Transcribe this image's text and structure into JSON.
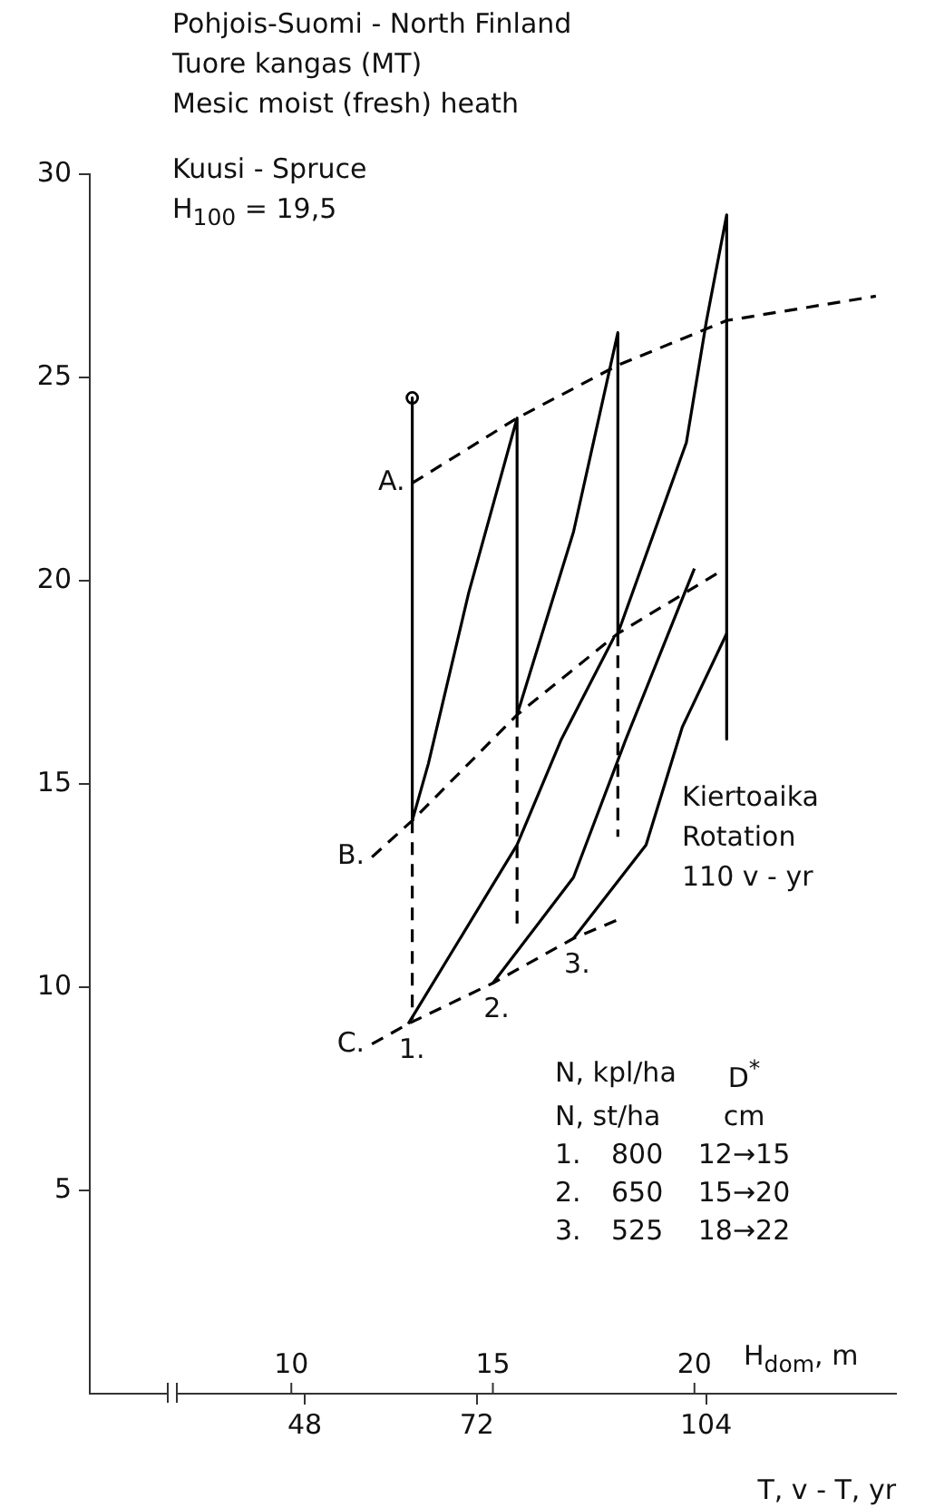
{
  "chart_data": {
    "type": "line",
    "title": "Pohjois-Suomi - North Finland",
    "subtitle": "Tuore kangas (MT)\nMesic moist (fresh) heath",
    "xlabel": "H$_{dom}$, m",
    "x2label": "T, v - T, yr",
    "xlim": [
      5,
      25
    ],
    "xticks": [
      10,
      15,
      20
    ],
    "x2lim": [
      18,
      130.5
    ],
    "x2ticks": [
      48,
      72,
      104
    ],
    "ylim": [
      0,
      30
    ],
    "yticks": [
      5,
      10,
      15,
      20,
      25,
      30
    ],
    "grid": false,
    "series": [
      {
        "color": "#000000",
        "line_style": "dashed",
        "x": [
          13.0,
          15.6,
          18.1,
          20.8,
          24.5
        ],
        "values": [
          22.4,
          24.0,
          25.3,
          26.4,
          27.0
        ]
      },
      {
        "color": "#000000",
        "line_style": "dashed",
        "x": [
          12.0,
          13.0,
          15.6,
          18.1,
          20.6
        ],
        "values": [
          13.2,
          14.1,
          16.7,
          18.7,
          20.2
        ]
      },
      {
        "color": "#000000",
        "line_style": "dashed",
        "x": [
          12.0,
          12.9,
          15.0,
          17.0,
          18.2
        ],
        "values": [
          8.6,
          9.1,
          10.1,
          11.2,
          11.7
        ]
      },
      {
        "color": "#000000",
        "line_style": "solid",
        "x": [
          13.0,
          13.0,
          13.4,
          14.4,
          15.6,
          15.6,
          17.0,
          18.1,
          18.1,
          19.8,
          20.3,
          20.8,
          20.8
        ],
        "values": [
          24.5,
          14.1,
          15.5,
          19.7,
          24.0,
          16.7,
          21.2,
          26.1,
          18.7,
          23.4,
          26.4,
          29.0,
          16.1
        ]
      },
      {
        "color": "#000000",
        "line_style": "dashed",
        "x": [
          13.0,
          13.0
        ],
        "values": [
          14.1,
          9.2
        ]
      },
      {
        "color": "#000000",
        "line_style": "dashed",
        "x": [
          15.6,
          15.6
        ],
        "values": [
          16.7,
          11.4
        ]
      },
      {
        "color": "#000000",
        "line_style": "dashed",
        "x": [
          18.1,
          18.1
        ],
        "values": [
          18.7,
          13.7
        ]
      },
      {
        "color": "#000000",
        "line_style": "solid",
        "x": [
          18.0,
          16.7,
          15.6,
          12.9
        ],
        "values": [
          18.6,
          16.1,
          13.5,
          9.1
        ]
      },
      {
        "color": "#000000",
        "line_style": "solid",
        "x": [
          20.0,
          18.3,
          17.0,
          15.0
        ],
        "values": [
          20.3,
          16.1,
          12.7,
          10.1
        ]
      },
      {
        "color": "#000000",
        "line_style": "solid",
        "x": [
          20.8,
          19.7,
          18.8,
          17.0
        ],
        "values": [
          18.7,
          16.4,
          13.5,
          11.2
        ]
      },
      {
        "type": "scatter",
        "marker": "circle",
        "color": "#000000",
        "x": [
          13.0
        ],
        "values": [
          24.5
        ]
      }
    ],
    "annotations": [
      "Kuusi - Spruce\nH$_{100}$ = 19,5",
      "Kiertoaika\nRotation\n110 v - yr",
      "N, kpl/ha\tD$^{*}$",
      "N, st/ha\tcm",
      "1.\t800\t12→15",
      "2.\t650\t15→20",
      "3.\t525\t18→22",
      {
        "text": "A.",
        "x": 13.0,
        "y": 22.4
      },
      {
        "text": "B.",
        "x": 12.0,
        "y": 13.2
      },
      {
        "text": "C.",
        "x": 12.0,
        "y": 8.6
      },
      {
        "text": "1.",
        "x": 12.9,
        "y": 9.1
      },
      {
        "text": "2.",
        "x": 15.0,
        "y": 10.1
      },
      {
        "text": "3.",
        "x": 17.0,
        "y": 11.2
      }
    ]
  }
}
